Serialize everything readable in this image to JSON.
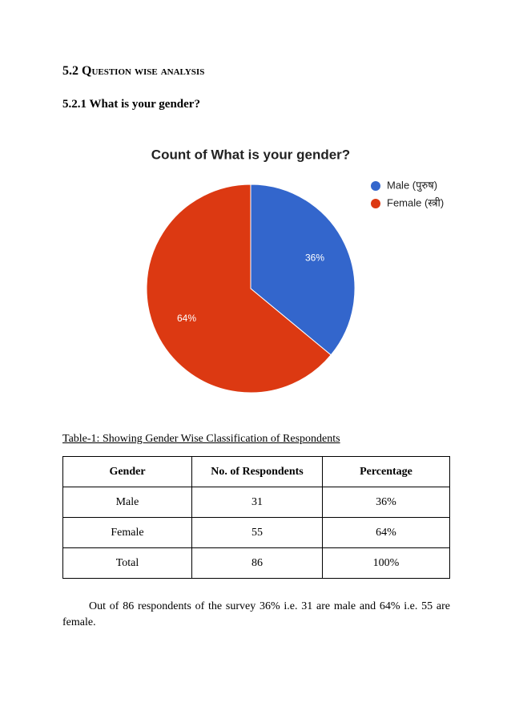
{
  "section_heading": "5.2 Question wise analysis",
  "subheading": "5.2.1 What is your gender?",
  "chart_data": {
    "type": "pie",
    "title": "Count of What is your gender?",
    "categories": [
      "Male (पुरुष)",
      "Female (स्त्री)"
    ],
    "values": [
      36,
      64
    ],
    "value_labels": [
      "36%",
      "64%"
    ],
    "colors": [
      "#3366cc",
      "#dc3912"
    ],
    "legend": "right"
  },
  "table": {
    "caption": "Table-1: Showing Gender Wise Classification of Respondents",
    "header": [
      "Gender",
      "No. of Respondents",
      "Percentage"
    ],
    "rows": [
      [
        "Male",
        "31",
        "36%"
      ],
      [
        "Female",
        "55",
        "64%"
      ],
      [
        "Total",
        "86",
        "100%"
      ]
    ]
  },
  "paragraph": "Out of 86 respondents of the survey 36% i.e. 31 are male and 64% i.e. 55 are female."
}
